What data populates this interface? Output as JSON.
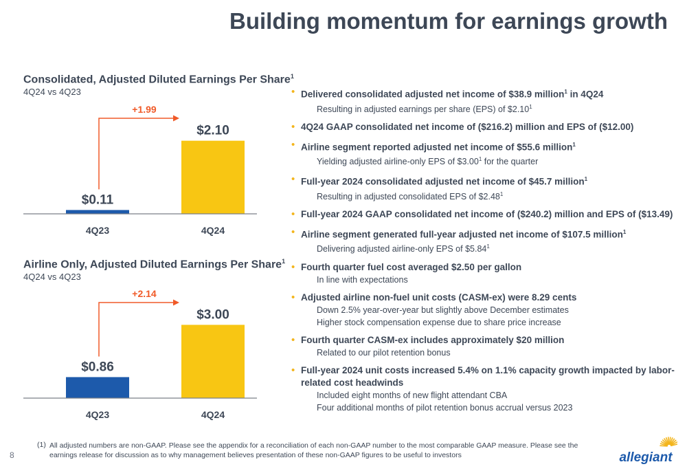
{
  "page": {
    "title": "Building momentum for earnings growth",
    "page_number": "8"
  },
  "charts": [
    {
      "title": "Consolidated, Adjusted Diluted Earnings Per Share",
      "title_sup": "1",
      "subtitle": "4Q24 vs 4Q23",
      "delta_label": "+1.99"
    },
    {
      "title": "Airline Only, Adjusted Diluted Earnings Per Share",
      "title_sup": "1",
      "subtitle": "4Q24 vs 4Q23",
      "delta_label": "+2.14"
    }
  ],
  "chart_data": [
    {
      "type": "bar",
      "title": "Consolidated, Adjusted Diluted Earnings Per Share",
      "subtitle": "4Q24 vs 4Q23",
      "categories": [
        "4Q23",
        "4Q24"
      ],
      "values": [
        0.11,
        2.1
      ],
      "value_labels": [
        "$0.11",
        "$2.10"
      ],
      "annotation": "+1.99",
      "colors": [
        "#1d5aab",
        "#f8c613"
      ],
      "ylim": [
        0,
        2.35
      ],
      "xlabel": "",
      "ylabel": ""
    },
    {
      "type": "bar",
      "title": "Airline Only, Adjusted Diluted Earnings Per Share",
      "subtitle": "4Q24 vs 4Q23",
      "categories": [
        "4Q23",
        "4Q24"
      ],
      "values": [
        0.86,
        3.0
      ],
      "value_labels": [
        "$0.86",
        "$3.00"
      ],
      "annotation": "+2.14",
      "colors": [
        "#1d5aab",
        "#f8c613"
      ],
      "ylim": [
        0,
        3.35
      ],
      "xlabel": "",
      "ylabel": ""
    }
  ],
  "bullets": [
    {
      "pre": "Delivered consolidated adjusted net income of $38.9 million",
      "sup": "1",
      "post": " in 4Q24",
      "subs": [
        {
          "pre": "Resulting in adjusted earnings per share (EPS) of $2.10",
          "sup": "1",
          "post": ""
        }
      ]
    },
    {
      "pre": "4Q24 GAAP consolidated net income of ($216.2) million and EPS of ($12.00)",
      "sup": "",
      "post": "",
      "subs": []
    },
    {
      "pre": "Airline segment reported adjusted net income of $55.6 million",
      "sup": "1",
      "post": "",
      "subs": [
        {
          "pre": "Yielding adjusted airline-only EPS of $3.00",
          "sup": "1",
          "post": " for the quarter"
        }
      ]
    },
    {
      "pre": "Full-year 2024 consolidated adjusted net income of $45.7 million",
      "sup": "1",
      "post": "",
      "subs": [
        {
          "pre": "Resulting in adjusted consolidated EPS of $2.48",
          "sup": "1",
          "post": ""
        }
      ]
    },
    {
      "pre": "Full-year 2024 GAAP consolidated net income of ($240.2) million and EPS of ($13.49)",
      "sup": "",
      "post": "",
      "subs": []
    },
    {
      "pre": "Airline segment generated full-year adjusted net income of $107.5 million",
      "sup": "1",
      "post": "",
      "subs": [
        {
          "pre": "Delivering adjusted airline-only EPS of $5.84",
          "sup": "1",
          "post": ""
        }
      ]
    },
    {
      "pre": "Fourth quarter fuel cost averaged $2.50 per gallon",
      "sup": "",
      "post": "",
      "subs": [
        {
          "pre": "In line with expectations",
          "sup": "",
          "post": ""
        }
      ]
    },
    {
      "pre": "Adjusted airline non-fuel unit costs (CASM-ex) were 8.29 cents",
      "sup": "",
      "post": "",
      "subs": [
        {
          "pre": "Down 2.5% year-over-year but slightly above December estimates",
          "sup": "",
          "post": ""
        },
        {
          "pre": "Higher stock compensation expense due to share price increase",
          "sup": "",
          "post": ""
        }
      ]
    },
    {
      "pre": "Fourth quarter CASM-ex includes approximately $20 million",
      "sup": "",
      "post": "",
      "subs": [
        {
          "pre": "Related to our pilot retention bonus",
          "sup": "",
          "post": ""
        }
      ]
    },
    {
      "pre": "Full-year 2024 unit costs increased 5.4% on 1.1% capacity growth impacted by labor-related cost headwinds",
      "sup": "",
      "post": "",
      "subs": [
        {
          "pre": "Included eight months of new flight attendant CBA",
          "sup": "",
          "post": ""
        },
        {
          "pre": "Four additional months of pilot retention bonus accrual versus 2023",
          "sup": "",
          "post": ""
        }
      ]
    }
  ],
  "footnote": {
    "number": "(1)",
    "text": "All adjusted numbers are non-GAAP. Please see the appendix for a reconciliation of each non-GAAP number to the most comparable GAAP measure. Please see the earnings release for discussion as to why management believes presentation of these non-GAAP figures to be useful to investors"
  },
  "logo": {
    "text": "allegiant",
    "color": "#1d5aab",
    "sun_color": "#f3b51c"
  },
  "colors": {
    "title": "#3d4756",
    "accent_orange": "#f05a28",
    "bullet": "#f3b51c"
  }
}
